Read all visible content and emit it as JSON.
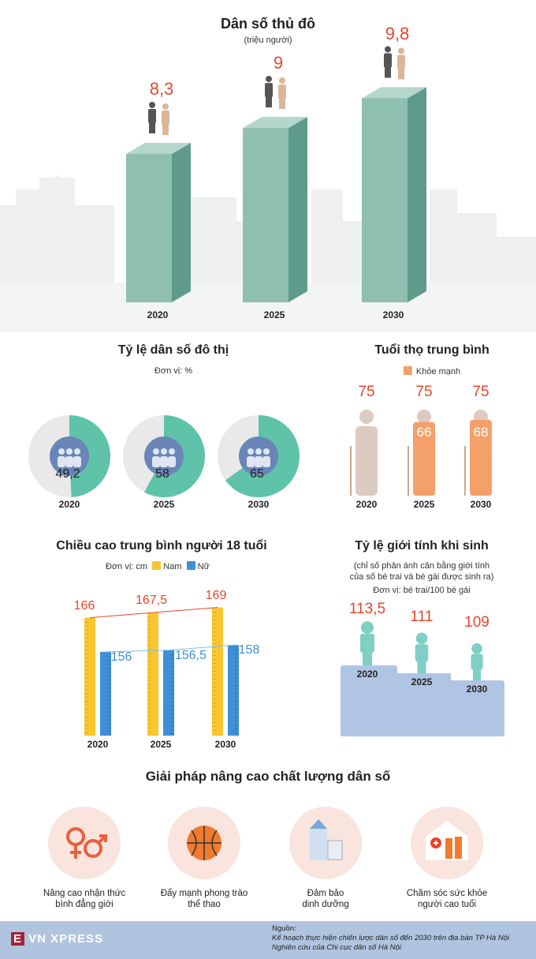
{
  "population": {
    "title": "Dân số thủ đô",
    "unit": "(triệu người)"
  },
  "urban": {
    "title": "Tỷ lệ dân số đô thị",
    "unit": "Đơn vị: %"
  },
  "life": {
    "title": "Tuổi thọ trung bình",
    "legend": "Khỏe mạnh"
  },
  "height": {
    "title": "Chiều cao trung bình người 18 tuổi",
    "unit": "Đơn vị: cm",
    "legend_male": "Nam",
    "legend_female": "Nữ"
  },
  "sex": {
    "title": "Tỷ lệ giới tính khi sinh",
    "note1": "(chỉ số phản ánh cân bằng giới tính",
    "note2": "của số bé trai và bé gái được sinh ra)",
    "unit": "Đơn vị: bé trai/100 bé gái"
  },
  "solutions": {
    "title": "Giải pháp nâng cao chất lượng dân số",
    "items": [
      {
        "icon": "gender-symbols-icon",
        "l1": "Nâng cao nhận thức",
        "l2": "bình đẳng giới"
      },
      {
        "icon": "basketball-icon",
        "l1": "Đẩy mạnh phong trào",
        "l2": "thể thao"
      },
      {
        "icon": "milk-icon",
        "l1": "Đảm bảo",
        "l2": "dinh dưỡng"
      },
      {
        "icon": "elderly-care-icon",
        "l1": "Chăm sóc sức khỏe",
        "l2": "người cao tuổi"
      }
    ]
  },
  "footer": {
    "logo": "VNEXPRESS",
    "source_label": "Nguồn:",
    "source1": "Kế hoạch thực hiện chiến lược dân số đến 2030 trên địa bàn TP Hà Nội",
    "source2": "Nghiên cứu của Chi cục dân số Hà Nội"
  },
  "colors": {
    "teal": "#8fbfb0",
    "accent": "#e8452c",
    "urban": "#5fc3aa",
    "healthy": "#f4a06a",
    "elder": "#dccbc1",
    "male": "#f9c631",
    "female": "#3e8fd6",
    "sexbar": "#b0c4e4"
  },
  "chart_data": [
    {
      "type": "bar",
      "title": "Dân số thủ đô",
      "ylabel": "(triệu người)",
      "categories": [
        "2020",
        "2025",
        "2030"
      ],
      "values": [
        8.3,
        9,
        9.8
      ],
      "labels": [
        "8,3",
        "9",
        "9,8"
      ]
    },
    {
      "type": "pie",
      "title": "Tỷ lệ dân số đô thị",
      "categories": [
        "2020",
        "2025",
        "2030"
      ],
      "values": [
        49.2,
        58,
        65
      ],
      "labels": [
        "49,2",
        "58",
        "65"
      ]
    },
    {
      "type": "bar",
      "title": "Tuổi thọ trung bình",
      "categories": [
        "2020",
        "2025",
        "2030"
      ],
      "series": [
        {
          "name": "Tuổi thọ",
          "values": [
            75,
            75,
            75
          ],
          "labels": [
            "75",
            "75",
            "75"
          ]
        },
        {
          "name": "Khỏe mạnh",
          "values": [
            null,
            66,
            68
          ],
          "labels": [
            "",
            "66",
            "68"
          ]
        }
      ]
    },
    {
      "type": "bar",
      "title": "Chiều cao trung bình người 18 tuổi",
      "ylabel": "Đơn vị: cm",
      "categories": [
        "2020",
        "2025",
        "2030"
      ],
      "series": [
        {
          "name": "Nam",
          "values": [
            166,
            167.5,
            169
          ],
          "labels": [
            "166",
            "167,5",
            "169"
          ]
        },
        {
          "name": "Nữ",
          "values": [
            156,
            156.5,
            158
          ],
          "labels": [
            "156",
            "156,5",
            "158"
          ]
        }
      ]
    },
    {
      "type": "bar",
      "title": "Tỷ lệ giới tính khi sinh",
      "ylabel": "Đơn vị: bé trai/100 bé gái",
      "categories": [
        "2020",
        "2025",
        "2030"
      ],
      "values": [
        113.5,
        111,
        109
      ],
      "labels": [
        "113,5",
        "111",
        "109"
      ]
    }
  ]
}
